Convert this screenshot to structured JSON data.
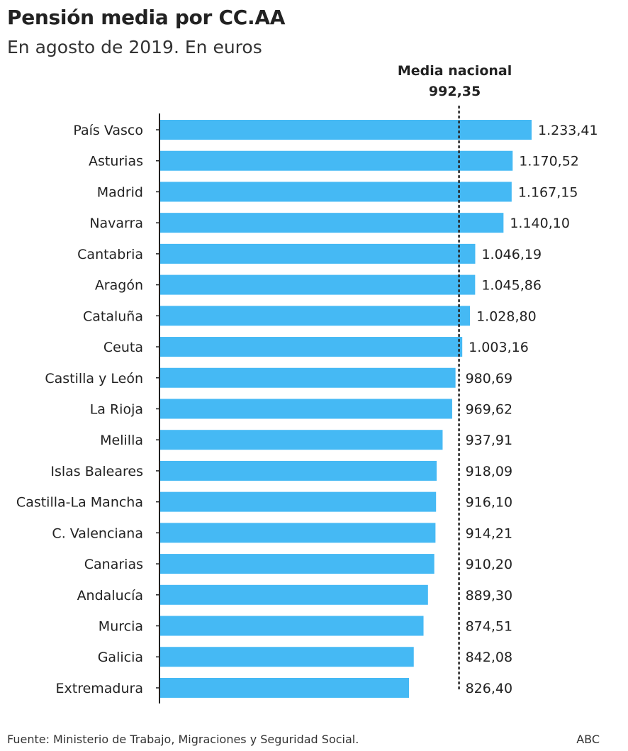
{
  "header": {
    "title": "Pensión media por CC.AA",
    "subtitle": "En agosto de 2019. En euros"
  },
  "footer": {
    "source": "Fuente: Ministerio de Trabajo, Migraciones y Seguridad Social.",
    "brand": "ABC"
  },
  "colors": {
    "bar": "#45b9f4",
    "axis": "#222222",
    "reference_line": "#222222"
  },
  "chart_data": {
    "type": "bar",
    "orientation": "horizontal",
    "title": "Pensión media por CC.AA",
    "subtitle": "En agosto de 2019. En euros",
    "categories": [
      "País Vasco",
      "Asturias",
      "Madrid",
      "Navarra",
      "Cantabria",
      "Aragón",
      "Cataluña",
      "Ceuta",
      "Castilla y León",
      "La Rioja",
      "Melilla",
      "Islas Baleares",
      "Castilla-La Mancha",
      "C. Valenciana",
      "Canarias",
      "Andalucía",
      "Murcia",
      "Galicia",
      "Extremadura"
    ],
    "values": [
      1233.41,
      1170.52,
      1167.15,
      1140.1,
      1046.19,
      1045.86,
      1028.8,
      1003.16,
      980.69,
      969.62,
      937.91,
      918.09,
      916.1,
      914.21,
      910.2,
      889.3,
      874.51,
      842.08,
      826.4
    ],
    "value_labels": [
      "1.233,41",
      "1.170,52",
      "1.167,15",
      "1.140,10",
      "1.046,19",
      "1.045,86",
      "1.028,80",
      "1.003,16",
      "980,69",
      "969,62",
      "937,91",
      "918,09",
      "916,10",
      "914,21",
      "910,20",
      "889,30",
      "874,51",
      "842,08",
      "826,40"
    ],
    "xlim": [
      0,
      1233.41
    ],
    "reference_line": {
      "label": "Media nacional",
      "value": 992.35,
      "value_label": "992,35",
      "style": "dotted"
    },
    "grid": false,
    "legend": "none"
  }
}
